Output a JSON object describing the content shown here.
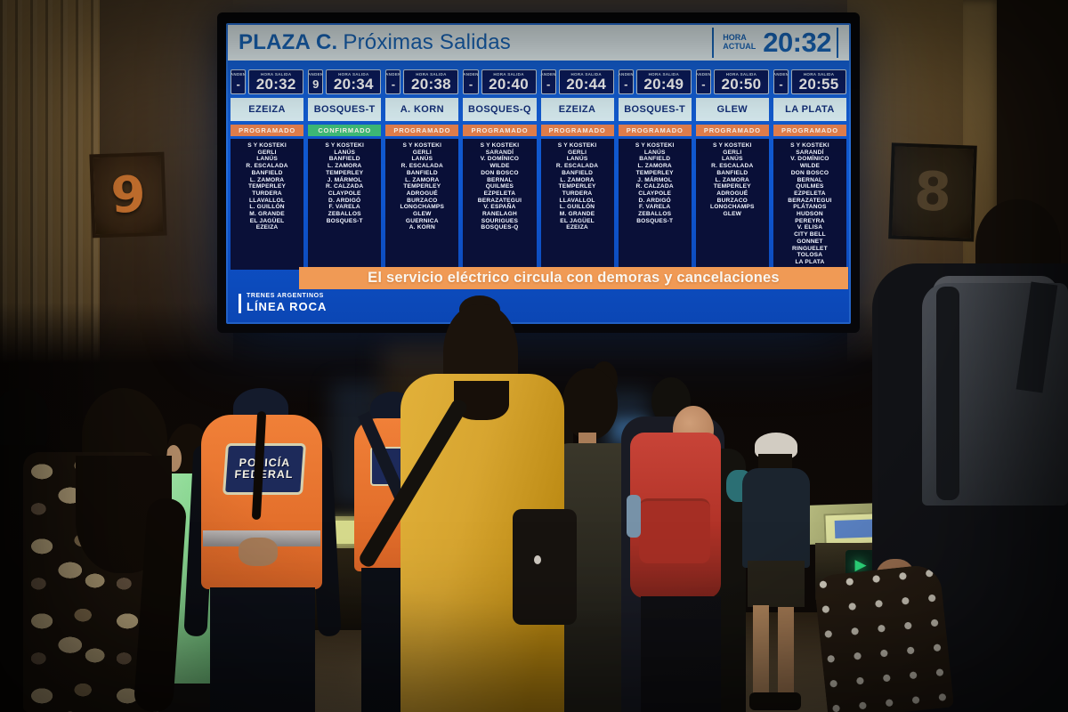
{
  "scene": {
    "platform_sign_left": "9",
    "platform_sign_right": "8",
    "police_vest": {
      "line1": "POLICÍA",
      "line2": "FEDERAL"
    }
  },
  "board": {
    "header": {
      "station": "PLAZA C.",
      "title": "Próximas Salidas",
      "clock_label_1": "HORA",
      "clock_label_2": "ACTUAL",
      "time": "20:32"
    },
    "labels": {
      "platform": "ANDEN",
      "departure_time": "HORA SALIDA"
    },
    "ticker": "El servicio eléctrico circula con demoras y cancelaciones",
    "brand": {
      "line1": "TRENES ARGENTINOS",
      "line2": "LÍNEA ROCA"
    },
    "status_colors": {
      "PROGRAMADO": "#e8824e",
      "CONFIRMADO": "#3fbf7a"
    },
    "departures": [
      {
        "platform": "-",
        "time": "20:32",
        "destination": "EZEIZA",
        "status": "PROGRAMADO",
        "stops": [
          "S Y KOSTEKI",
          "GERLI",
          "LANÚS",
          "R. ESCALADA",
          "BANFIELD",
          "L. ZAMORA",
          "TEMPERLEY",
          "TURDERA",
          "LLAVALLOL",
          "L. GUILLÓN",
          "M. GRANDE",
          "EL JAGÜEL",
          "EZEIZA"
        ]
      },
      {
        "platform": "9",
        "time": "20:34",
        "destination": "BOSQUES-T",
        "status": "CONFIRMADO",
        "stops": [
          "S Y KOSTEKI",
          "LANÚS",
          "BANFIELD",
          "L. ZAMORA",
          "TEMPERLEY",
          "J. MÁRMOL",
          "R. CALZADA",
          "CLAYPOLE",
          "D. ARDIGÓ",
          "F. VARELA",
          "ZEBALLOS",
          "BOSQUES-T"
        ]
      },
      {
        "platform": "-",
        "time": "20:38",
        "destination": "A. KORN",
        "status": "PROGRAMADO",
        "stops": [
          "S Y KOSTEKI",
          "GERLI",
          "LANÚS",
          "R. ESCALADA",
          "BANFIELD",
          "L. ZAMORA",
          "TEMPERLEY",
          "ADROGUÉ",
          "BURZACO",
          "LONGCHAMPS",
          "GLEW",
          "GUERNICA",
          "A. KORN"
        ]
      },
      {
        "platform": "-",
        "time": "20:40",
        "destination": "BOSQUES-Q",
        "status": "PROGRAMADO",
        "stops": [
          "S Y KOSTEKI",
          "SARANDÍ",
          "V. DOMÍNICO",
          "WILDE",
          "DON BOSCO",
          "BERNAL",
          "QUILMES",
          "EZPELETA",
          "BERAZATEGUI",
          "V. ESPAÑA",
          "RANELAGH",
          "SOURIGUES",
          "BOSQUES-Q"
        ]
      },
      {
        "platform": "-",
        "time": "20:44",
        "destination": "EZEIZA",
        "status": "PROGRAMADO",
        "stops": [
          "S Y KOSTEKI",
          "GERLI",
          "LANÚS",
          "R. ESCALADA",
          "BANFIELD",
          "L. ZAMORA",
          "TEMPERLEY",
          "TURDERA",
          "LLAVALLOL",
          "L. GUILLÓN",
          "M. GRANDE",
          "EL JAGÜEL",
          "EZEIZA"
        ]
      },
      {
        "platform": "-",
        "time": "20:49",
        "destination": "BOSQUES-T",
        "status": "PROGRAMADO",
        "stops": [
          "S Y KOSTEKI",
          "LANÚS",
          "BANFIELD",
          "L. ZAMORA",
          "TEMPERLEY",
          "J. MÁRMOL",
          "R. CALZADA",
          "CLAYPOLE",
          "D. ARDIGÓ",
          "F. VARELA",
          "ZEBALLOS",
          "BOSQUES-T"
        ]
      },
      {
        "platform": "-",
        "time": "20:50",
        "destination": "GLEW",
        "status": "PROGRAMADO",
        "stops": [
          "S Y KOSTEKI",
          "GERLI",
          "LANÚS",
          "R. ESCALADA",
          "BANFIELD",
          "L. ZAMORA",
          "TEMPERLEY",
          "ADROGUÉ",
          "BURZACO",
          "LONGCHAMPS",
          "GLEW"
        ]
      },
      {
        "platform": "-",
        "time": "20:55",
        "destination": "LA PLATA",
        "status": "PROGRAMADO",
        "stops": [
          "S Y KOSTEKI",
          "SARANDÍ",
          "V. DOMÍNICO",
          "WILDE",
          "DON BOSCO",
          "BERNAL",
          "QUILMES",
          "EZPELETA",
          "BERAZATEGUI",
          "PLÁTANOS",
          "HUDSON",
          "PEREYRA",
          "V. ELISA",
          "CITY BELL",
          "GONNET",
          "RINGUELET",
          "TOLOSA",
          "LA PLATA"
        ]
      }
    ]
  }
}
